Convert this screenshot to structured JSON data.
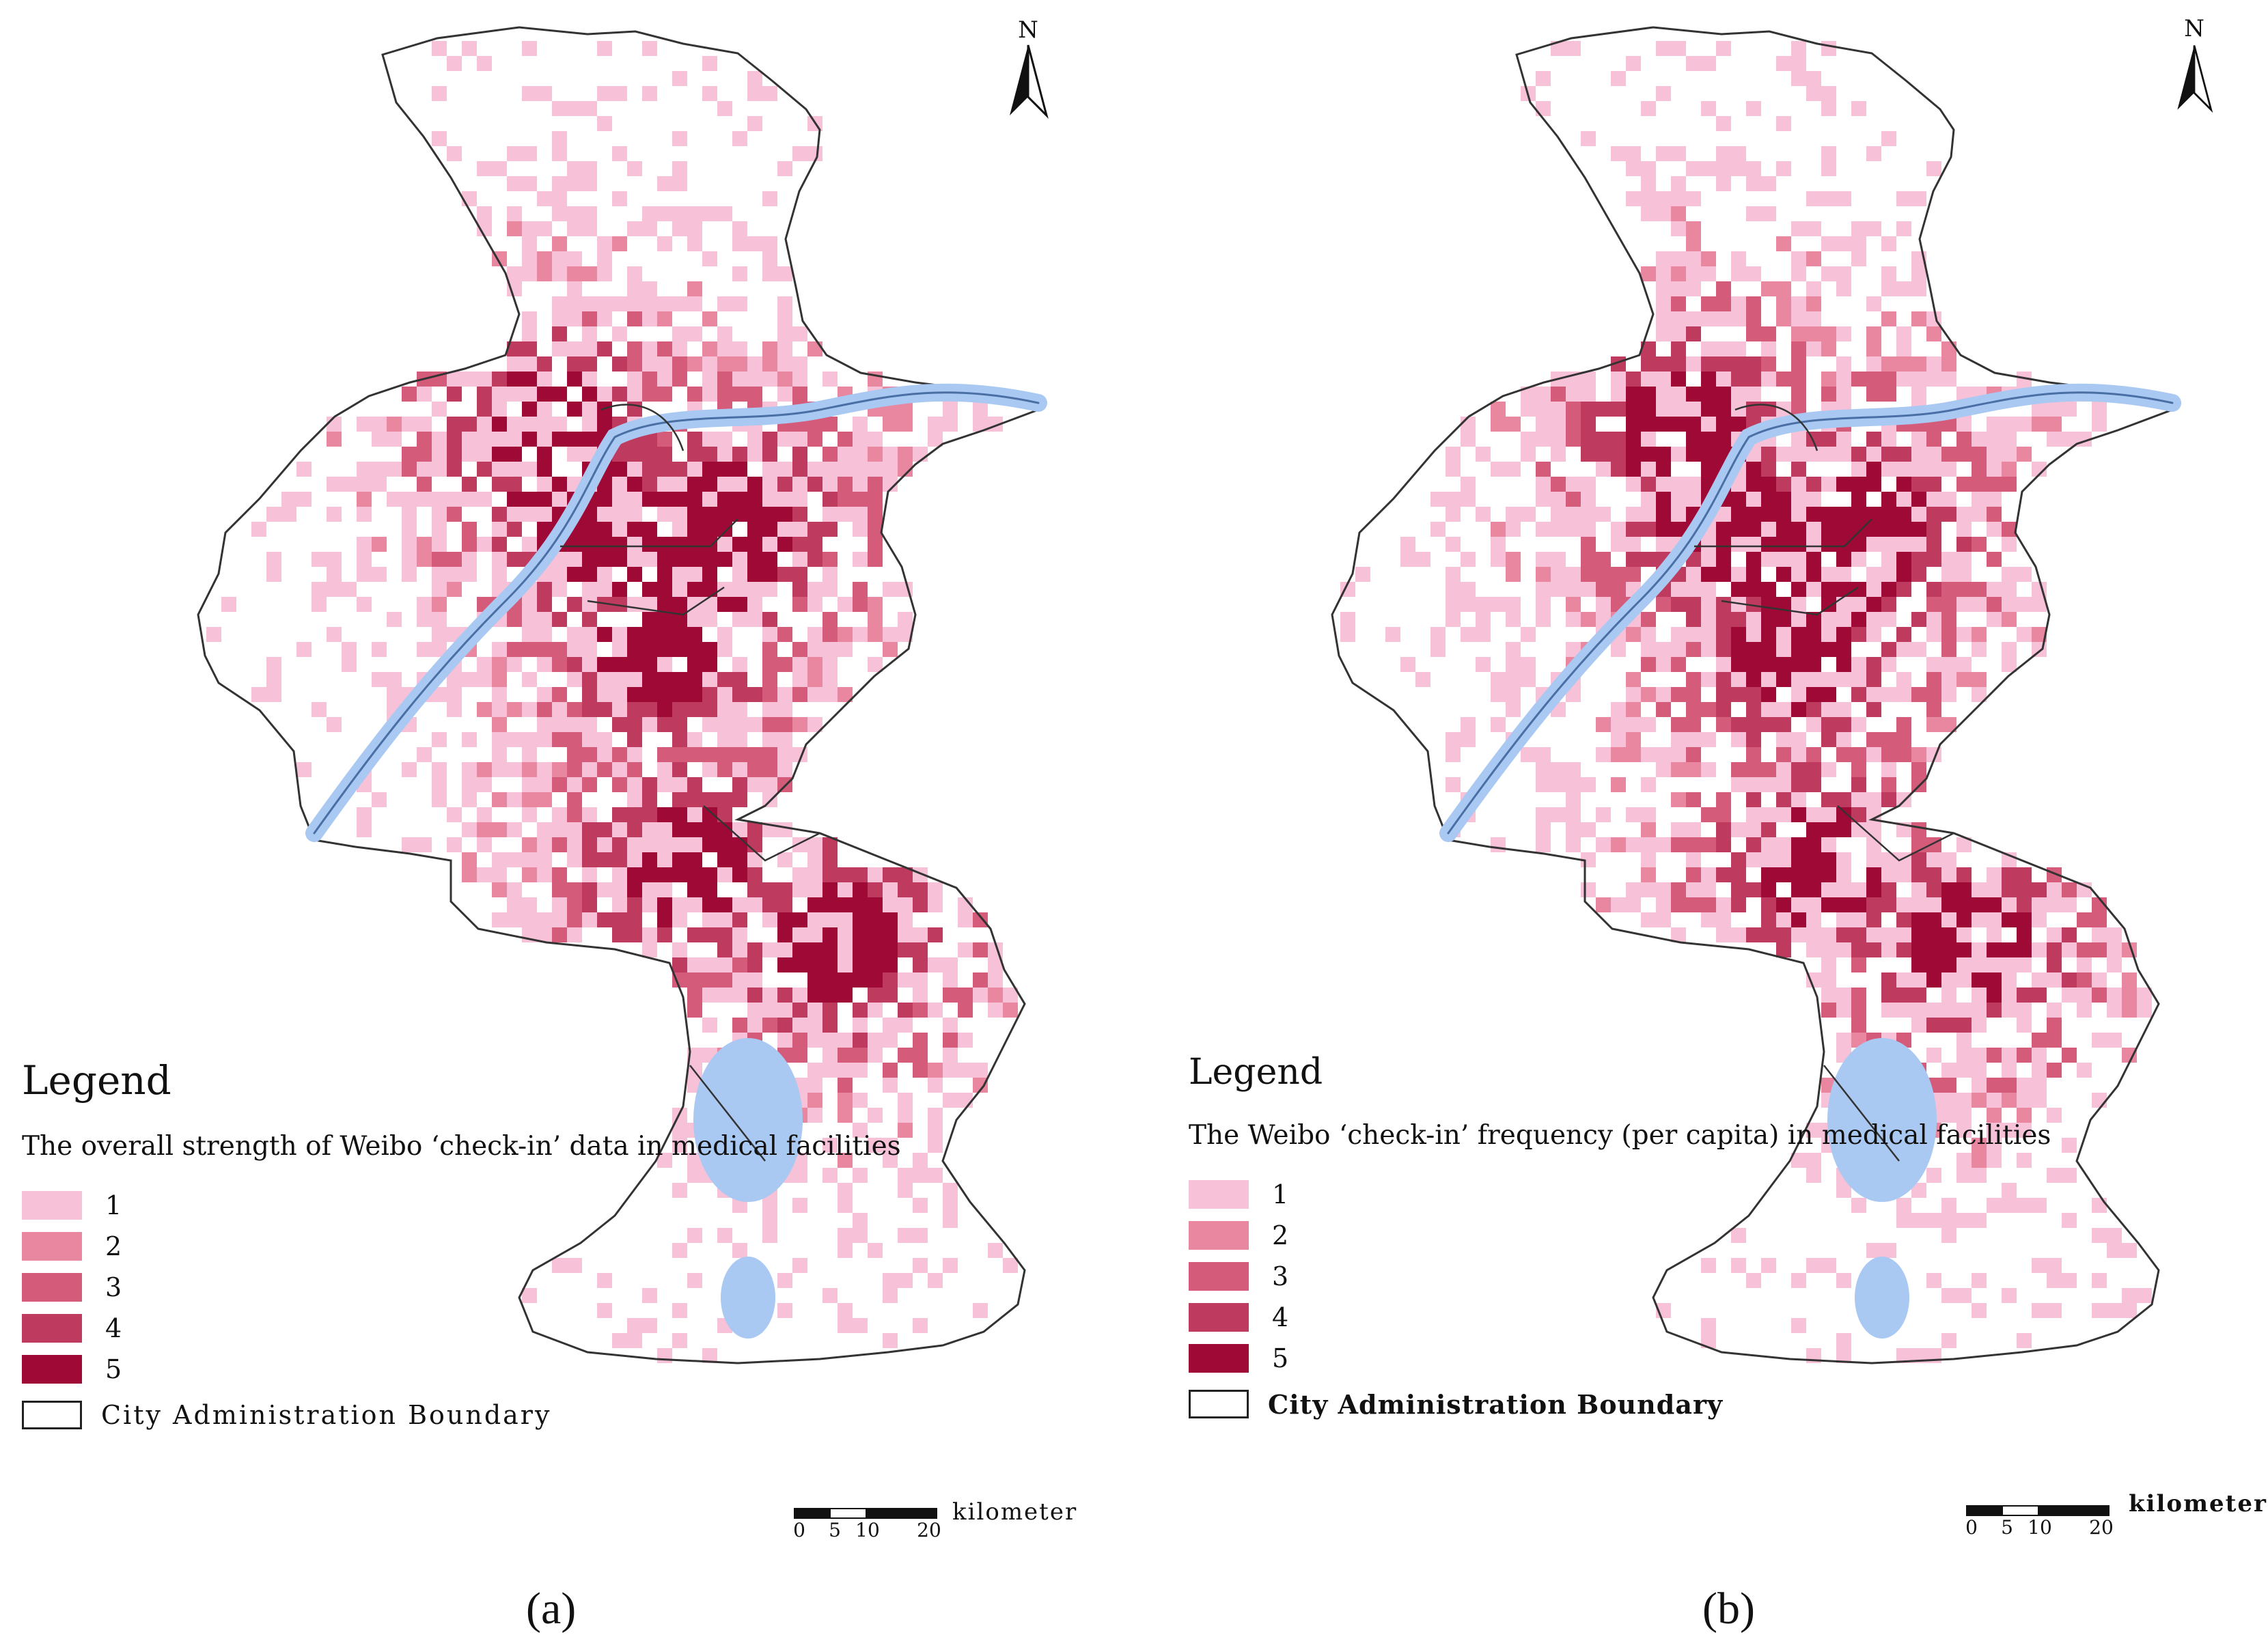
{
  "panels": [
    {
      "id": "a",
      "legend_title": "Legend",
      "legend_subtitle": "The overall strength of Weibo ‘check-in’ data in medical facilities",
      "levels": [
        {
          "label": "1",
          "color": "#f7c1d8"
        },
        {
          "label": "2",
          "color": "#e8879f"
        },
        {
          "label": "3",
          "color": "#d55b7b"
        },
        {
          "label": "4",
          "color": "#be3a5e"
        },
        {
          "label": "5",
          "color": "#9e0a35"
        }
      ],
      "boundary_label": "City Administration Boundary",
      "scale_ticks": [
        "0",
        "5",
        "10",
        "20"
      ],
      "scale_unit": "kilometer",
      "north_label": "N",
      "caption": "(a)"
    },
    {
      "id": "b",
      "legend_title": "Legend",
      "legend_subtitle": "The Weibo ‘check-in’ frequency (per capita) in medical facilities",
      "levels": [
        {
          "label": "1",
          "color": "#f7c1d8"
        },
        {
          "label": "2",
          "color": "#e8879f"
        },
        {
          "label": "3",
          "color": "#d55b7b"
        },
        {
          "label": "4",
          "color": "#be3a5e"
        },
        {
          "label": "5",
          "color": "#9e0a35"
        }
      ],
      "boundary_label": "City Administration Boundary",
      "scale_ticks": [
        "0",
        "5",
        "10",
        "20"
      ],
      "scale_unit": "kilometer",
      "north_label": "N",
      "caption": "(b)"
    }
  ],
  "colors": {
    "water": "#a9c9f2",
    "river_edge": "#4a6fa5",
    "boundary": "#333333",
    "minor_water": "#bcd4f5"
  }
}
